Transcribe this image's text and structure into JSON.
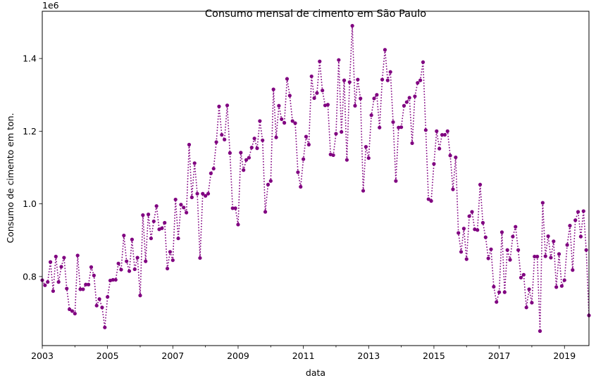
{
  "chart_data": {
    "type": "line",
    "title": "Consumo mensal de cimento em São Paulo",
    "xlabel": "data",
    "ylabel": "Consumo de cimento em ton.",
    "y_offset_label": "1e6",
    "x_tick_labels": [
      "2003",
      "2005",
      "2007",
      "2009",
      "2011",
      "2013",
      "2015",
      "2017",
      "2019"
    ],
    "y_tick_labels": [
      "0.8",
      "1.0",
      "1.2",
      "1.4"
    ],
    "y_tick_values": [
      0.8,
      1.0,
      1.2,
      1.4
    ],
    "x_range": [
      "2003-01",
      "2019-12"
    ],
    "ylim": [
      0.61,
      1.53
    ],
    "grid": false,
    "line_style": "dotted",
    "marker": "circle",
    "color": "#800080",
    "series": [
      {
        "values": [
          0.79,
          0.776,
          0.785,
          0.84,
          0.76,
          0.855,
          0.785,
          0.827,
          0.852,
          0.767,
          0.71,
          0.705,
          0.698,
          0.858,
          0.765,
          0.765,
          0.778,
          0.778,
          0.826,
          0.803,
          0.72,
          0.738,
          0.715,
          0.66,
          0.744,
          0.789,
          0.791,
          0.791,
          0.836,
          0.819,
          0.913,
          0.842,
          0.815,
          0.902,
          0.82,
          0.852,
          0.748,
          0.969,
          0.842,
          0.971,
          0.905,
          0.952,
          0.994,
          0.93,
          0.933,
          0.948,
          0.822,
          0.868,
          0.845,
          1.012,
          0.905,
          0.998,
          0.99,
          0.976,
          1.163,
          1.018,
          1.112,
          1.028,
          0.851,
          1.028,
          1.022,
          1.028,
          1.084,
          1.097,
          1.17,
          1.268,
          1.19,
          1.177,
          1.271,
          1.14,
          0.988,
          0.988,
          0.943,
          1.141,
          1.093,
          1.121,
          1.127,
          1.155,
          1.18,
          1.153,
          1.228,
          1.175,
          0.978,
          1.053,
          1.063,
          1.315,
          1.183,
          1.27,
          1.233,
          1.223,
          1.344,
          1.298,
          1.228,
          1.222,
          1.087,
          1.047,
          1.123,
          1.185,
          1.163,
          1.351,
          1.291,
          1.305,
          1.392,
          1.312,
          1.271,
          1.273,
          1.136,
          1.134,
          1.193,
          1.396,
          1.198,
          1.34,
          1.121,
          1.335,
          1.49,
          1.27,
          1.342,
          1.29,
          1.036,
          1.157,
          1.126,
          1.244,
          1.29,
          1.3,
          1.21,
          1.342,
          1.424,
          1.34,
          1.363,
          1.225,
          1.063,
          1.21,
          1.211,
          1.27,
          1.28,
          1.292,
          1.167,
          1.296,
          1.333,
          1.34,
          1.39,
          1.203,
          1.013,
          1.008,
          1.11,
          1.2,
          1.152,
          1.19,
          1.19,
          1.2,
          1.133,
          1.04,
          1.128,
          0.92,
          0.868,
          0.932,
          0.848,
          0.966,
          0.978,
          0.93,
          0.928,
          1.053,
          0.948,
          0.908,
          0.85,
          0.875,
          0.772,
          0.73,
          0.757,
          0.922,
          0.757,
          0.873,
          0.846,
          0.91,
          0.937,
          0.873,
          0.797,
          0.805,
          0.715,
          0.765,
          0.728,
          0.855,
          0.855,
          0.65,
          1.003,
          0.856,
          0.911,
          0.852,
          0.897,
          0.771,
          0.862,
          0.774,
          0.79,
          0.887,
          0.94,
          0.818,
          0.955,
          0.978,
          0.91,
          0.98,
          0.873,
          0.693
        ]
      }
    ]
  }
}
